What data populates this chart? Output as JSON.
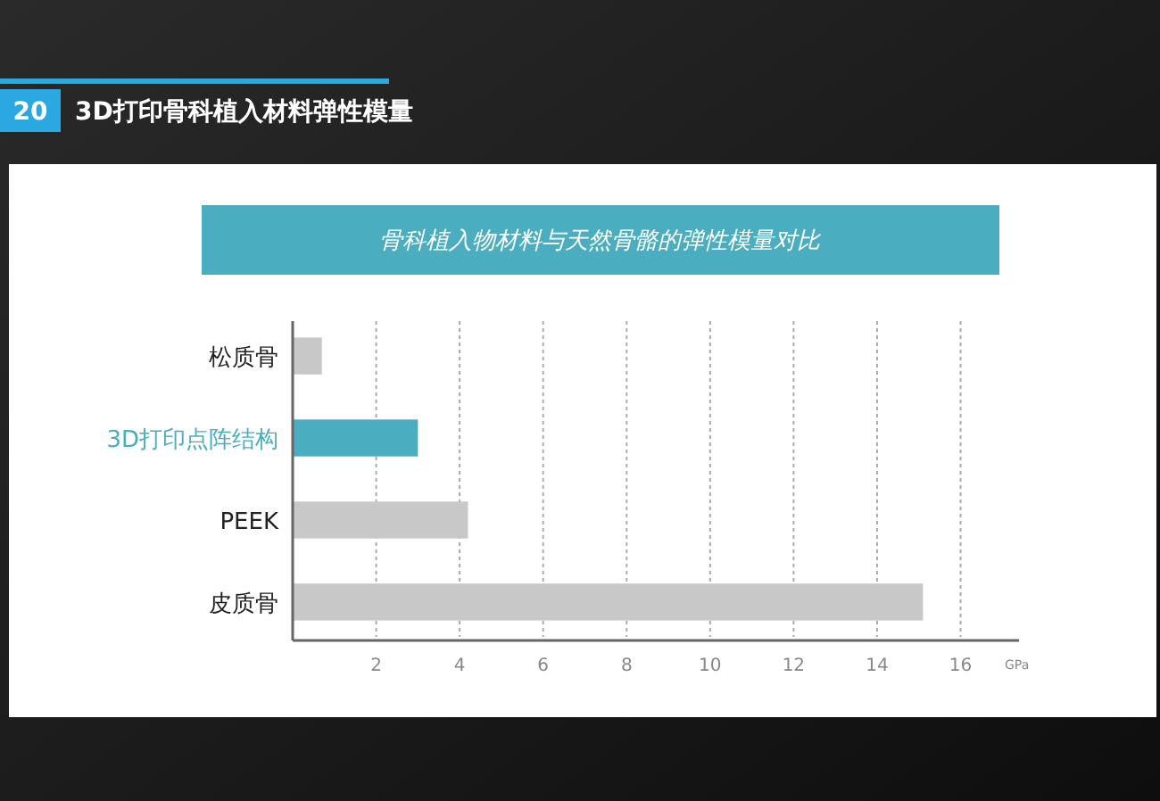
{
  "chart_data": {
    "type": "bar",
    "orientation": "horizontal",
    "title": "3D打印骨科植入材料弹性模量",
    "subtitle": "骨科植入物材料与天然骨骼的弹性模量对比",
    "annotations": [
      "20"
    ],
    "categories": [
      "松质骨",
      "3D打印点阵结构",
      "PEEK",
      "皮质骨"
    ],
    "values": [
      0.7,
      3.0,
      4.2,
      15.1
    ],
    "colors": [
      "#c8c8c8",
      "#4aaec0",
      "#c8c8c8",
      "#c8c8c8"
    ],
    "xlabel": "GPa",
    "xlim": [
      0,
      17.4
    ],
    "xticks": [
      2,
      4,
      6,
      8,
      10,
      12,
      14,
      16
    ],
    "grid": "x"
  }
}
